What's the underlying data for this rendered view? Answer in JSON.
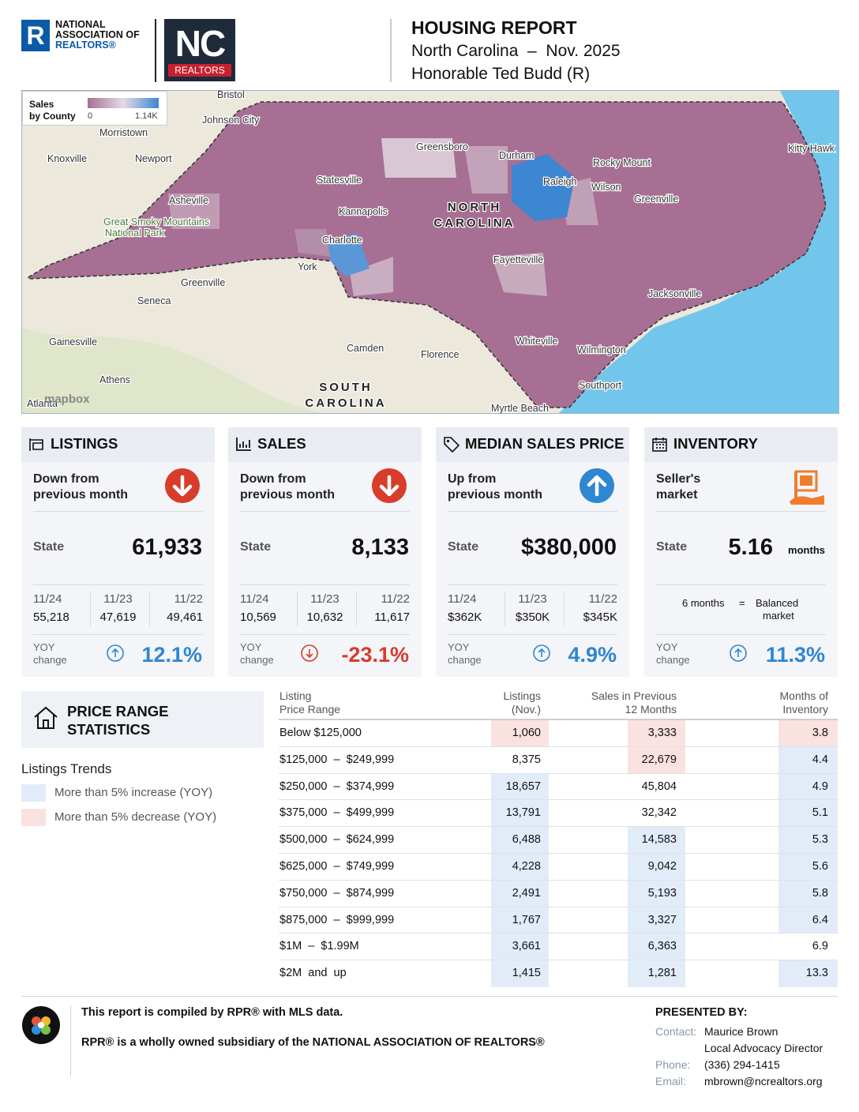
{
  "header": {
    "nar_logo": [
      "NATIONAL",
      "ASSOCIATION OF",
      "REALTORS®"
    ],
    "nc_logo": "NC",
    "nc_logo_sub": "REALTORS",
    "title": "HOUSING REPORT",
    "subtitle": "North Carolina  –  Nov. 2025",
    "representative": "Honorable Ted Budd (R)"
  },
  "map": {
    "legend": {
      "title": [
        "Sales",
        "by County"
      ],
      "min": "0",
      "max": "1.14K"
    },
    "labels": [
      "Bristol",
      "Johnson City",
      "Morristown",
      "Knoxville",
      "Newport",
      "Asheville",
      "Great Smoky Mountains",
      "National Park",
      "Greensboro",
      "Durham",
      "Raleigh",
      "Rocky Mount",
      "Wilson",
      "Greenville",
      "Statesville",
      "Kannapolis",
      "Charlotte",
      "York",
      "Greenville",
      "Seneca",
      "Gainesville",
      "Athens",
      "Camden",
      "Florence",
      "Fayetteville",
      "Jacksonville",
      "Whiteville",
      "Wilmington",
      "Southport",
      "Kitty Hawk",
      "Myrtle Beach",
      "Atlanta"
    ],
    "region_labels": [
      "NORTH",
      "CAROLINA",
      "SOUTH",
      "CAROLINA"
    ],
    "attribution": "mapbox"
  },
  "cards": [
    {
      "icon": "listings",
      "title": "LISTINGS",
      "trend": [
        "Down from",
        "previous month"
      ],
      "direction": "down",
      "state_label": "State",
      "state_value": "61,933",
      "periods": [
        "11/24",
        "11/23",
        "11/22"
      ],
      "period_values": [
        "55,218",
        "47,619",
        "49,461"
      ],
      "yoy_label": [
        "YOY",
        "change"
      ],
      "yoy_direction": "up",
      "yoy_value": "12.1%"
    },
    {
      "icon": "sales",
      "title": "SALES",
      "trend": [
        "Down from",
        "previous month"
      ],
      "direction": "down",
      "state_label": "State",
      "state_value": "8,133",
      "periods": [
        "11/24",
        "11/23",
        "11/22"
      ],
      "period_values": [
        "10,569",
        "10,632",
        "11,617"
      ],
      "yoy_label": [
        "YOY",
        "change"
      ],
      "yoy_direction": "down",
      "yoy_value": "-23.1%"
    },
    {
      "icon": "price",
      "title": "MEDIAN SALES PRICE",
      "trend": [
        "Up from",
        "previous month"
      ],
      "direction": "up",
      "state_label": "State",
      "state_value": "$380,000",
      "periods": [
        "11/24",
        "11/23",
        "11/22"
      ],
      "period_values": [
        "$362K",
        "$350K",
        "$345K"
      ],
      "yoy_label": [
        "YOY",
        "change"
      ],
      "yoy_direction": "up",
      "yoy_value": "4.9%"
    },
    {
      "icon": "inventory",
      "title": "INVENTORY",
      "trend": [
        "Seller's",
        "market"
      ],
      "direction": "market",
      "state_label": "State",
      "state_value": "5.16",
      "state_unit": "months",
      "balance": [
        "6 months",
        "=",
        "Balanced",
        "market"
      ],
      "yoy_label": [
        "YOY",
        "change"
      ],
      "yoy_direction": "up",
      "yoy_value": "11.3%"
    }
  ],
  "price_range": {
    "title": [
      "PRICE RANGE",
      "STATISTICS"
    ],
    "trends_title": "Listings Trends",
    "legend": [
      {
        "key": "increase",
        "label": "More than 5% increase (YOY)"
      },
      {
        "key": "decrease",
        "label": "More than 5% decrease (YOY)"
      }
    ],
    "columns": [
      [
        "Listing",
        "Price Range"
      ],
      [
        "Listings",
        "(Nov.)"
      ],
      [
        "Sales in Previous",
        "12 Months"
      ],
      [
        "Months of",
        "Inventory"
      ]
    ],
    "rows": [
      {
        "range": "Below $125,000",
        "listings": "1,060",
        "sales": "3,333",
        "months": "3.8",
        "shade": [
          "decrease",
          "decrease",
          "decrease"
        ]
      },
      {
        "range": "$125,000  –  $249,999",
        "listings": "8,375",
        "sales": "22,679",
        "months": "4.4",
        "shade": [
          "none",
          "decrease",
          "increase"
        ]
      },
      {
        "range": "$250,000  –  $374,999",
        "listings": "18,657",
        "sales": "45,804",
        "months": "4.9",
        "shade": [
          "increase",
          "none",
          "increase"
        ]
      },
      {
        "range": "$375,000  –  $499,999",
        "listings": "13,791",
        "sales": "32,342",
        "months": "5.1",
        "shade": [
          "increase",
          "none",
          "increase"
        ]
      },
      {
        "range": "$500,000  –  $624,999",
        "listings": "6,488",
        "sales": "14,583",
        "months": "5.3",
        "shade": [
          "increase",
          "increase",
          "increase"
        ]
      },
      {
        "range": "$625,000  –  $749,999",
        "listings": "4,228",
        "sales": "9,042",
        "months": "5.6",
        "shade": [
          "increase",
          "increase",
          "increase"
        ]
      },
      {
        "range": "$750,000  –  $874,999",
        "listings": "2,491",
        "sales": "5,193",
        "months": "5.8",
        "shade": [
          "increase",
          "increase",
          "increase"
        ]
      },
      {
        "range": "$875,000  –  $999,999",
        "listings": "1,767",
        "sales": "3,327",
        "months": "6.4",
        "shade": [
          "increase",
          "increase",
          "increase"
        ]
      },
      {
        "range": "$1M  –  $1.99M",
        "listings": "3,661",
        "sales": "6,363",
        "months": "6.9",
        "shade": [
          "increase",
          "increase",
          "none"
        ]
      },
      {
        "range": "$2M  and  up",
        "listings": "1,415",
        "sales": "1,281",
        "months": "13.3",
        "shade": [
          "increase",
          "increase",
          "increase"
        ]
      }
    ]
  },
  "footer": {
    "line1": "This report is compiled by RPR® with MLS data.",
    "line2": "RPR® is a wholly owned subsidiary of the NATIONAL ASSOCIATION OF REALTORS®",
    "presented_by": "PRESENTED BY:",
    "contact": [
      {
        "label": "Contact:",
        "value": "Maurice Brown"
      },
      {
        "label": "",
        "value": "Local Advocacy Director"
      },
      {
        "label": "Phone:",
        "value": "(336) 294-1415"
      },
      {
        "label": "Email:",
        "value": "mbrown@ncrealtors.org"
      }
    ]
  }
}
